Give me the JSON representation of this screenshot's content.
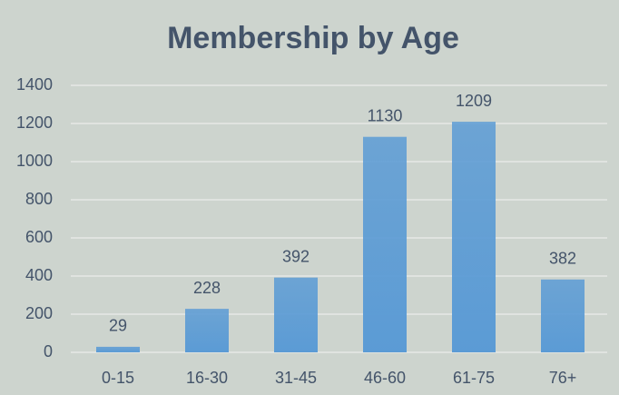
{
  "chart_data": {
    "type": "bar",
    "title": "Membership by Age",
    "categories": [
      "0-15",
      "16-30",
      "31-45",
      "46-60",
      "61-75",
      "76+"
    ],
    "values": [
      29,
      228,
      392,
      1130,
      1209,
      382
    ],
    "color": "#5b9bd5",
    "ylim": [
      0,
      1400
    ],
    "yticks": [
      0,
      200,
      400,
      600,
      800,
      1000,
      1200,
      1400
    ],
    "grid": true,
    "data_labels": true
  }
}
